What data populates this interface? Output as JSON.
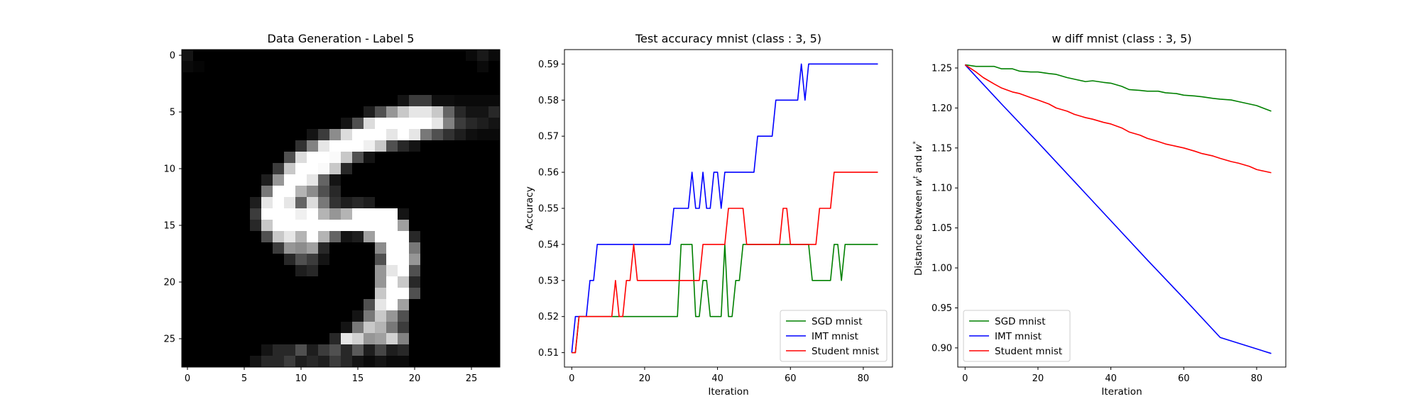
{
  "charts": [
    {
      "type": "heatmap",
      "title": "Data Generation - Label 5",
      "colormap": "gray",
      "xticks": [
        0,
        5,
        10,
        15,
        20,
        25
      ],
      "yticks": [
        0,
        5,
        10,
        15,
        20,
        25
      ],
      "image": [
        [
          20,
          0,
          0,
          0,
          0,
          0,
          0,
          0,
          0,
          0,
          0,
          0,
          0,
          0,
          0,
          0,
          0,
          0,
          0,
          0,
          0,
          0,
          0,
          0,
          0,
          10,
          25,
          10
        ],
        [
          10,
          5,
          0,
          0,
          0,
          0,
          0,
          0,
          0,
          0,
          0,
          0,
          0,
          0,
          0,
          0,
          0,
          0,
          0,
          0,
          0,
          0,
          0,
          0,
          0,
          0,
          10,
          0
        ],
        [
          0,
          0,
          0,
          0,
          0,
          0,
          0,
          0,
          0,
          0,
          0,
          0,
          0,
          0,
          0,
          0,
          0,
          0,
          0,
          0,
          0,
          0,
          0,
          0,
          0,
          0,
          0,
          0
        ],
        [
          0,
          0,
          0,
          0,
          0,
          0,
          0,
          0,
          0,
          0,
          0,
          0,
          0,
          0,
          0,
          0,
          0,
          0,
          0,
          0,
          0,
          0,
          0,
          0,
          0,
          0,
          0,
          0
        ],
        [
          0,
          0,
          0,
          0,
          0,
          0,
          0,
          0,
          0,
          0,
          0,
          0,
          0,
          0,
          0,
          0,
          0,
          0,
          0,
          20,
          60,
          60,
          15,
          15,
          10,
          10,
          10,
          10
        ],
        [
          0,
          0,
          0,
          0,
          0,
          0,
          0,
          0,
          0,
          0,
          0,
          0,
          0,
          0,
          0,
          0,
          30,
          80,
          150,
          200,
          230,
          230,
          200,
          100,
          40,
          20,
          20,
          40
        ],
        [
          0,
          0,
          0,
          0,
          0,
          0,
          0,
          0,
          0,
          0,
          0,
          0,
          0,
          0,
          20,
          80,
          220,
          255,
          255,
          255,
          255,
          255,
          230,
          130,
          60,
          40,
          30,
          20
        ],
        [
          0,
          0,
          0,
          0,
          0,
          0,
          0,
          0,
          0,
          0,
          0,
          20,
          60,
          140,
          220,
          255,
          255,
          255,
          230,
          255,
          230,
          120,
          80,
          50,
          30,
          15,
          10,
          10
        ],
        [
          0,
          0,
          0,
          0,
          0,
          0,
          0,
          0,
          0,
          0,
          50,
          130,
          230,
          255,
          255,
          255,
          240,
          200,
          80,
          40,
          20,
          0,
          0,
          0,
          0,
          0,
          0,
          0
        ],
        [
          0,
          0,
          0,
          0,
          0,
          0,
          0,
          0,
          0,
          80,
          220,
          255,
          255,
          250,
          200,
          80,
          20,
          0,
          0,
          0,
          0,
          0,
          0,
          0,
          0,
          0,
          0,
          0
        ],
        [
          0,
          0,
          0,
          0,
          0,
          0,
          0,
          0,
          60,
          200,
          255,
          255,
          250,
          200,
          40,
          0,
          0,
          0,
          0,
          0,
          0,
          0,
          0,
          0,
          0,
          0,
          0,
          0
        ],
        [
          0,
          0,
          0,
          0,
          0,
          0,
          0,
          30,
          150,
          255,
          255,
          230,
          100,
          20,
          0,
          0,
          0,
          0,
          0,
          0,
          0,
          0,
          0,
          0,
          0,
          0,
          0,
          0
        ],
        [
          0,
          0,
          0,
          0,
          0,
          0,
          0,
          120,
          255,
          255,
          180,
          140,
          80,
          40,
          0,
          0,
          0,
          0,
          0,
          0,
          0,
          0,
          0,
          0,
          0,
          0,
          0,
          0
        ],
        [
          0,
          0,
          0,
          0,
          0,
          0,
          30,
          230,
          255,
          230,
          100,
          220,
          120,
          50,
          30,
          40,
          30,
          0,
          0,
          0,
          0,
          0,
          0,
          0,
          0,
          0,
          0,
          0
        ],
        [
          0,
          0,
          0,
          0,
          0,
          0,
          60,
          255,
          255,
          255,
          240,
          255,
          180,
          150,
          180,
          255,
          255,
          255,
          255,
          20,
          0,
          0,
          0,
          0,
          0,
          0,
          0,
          0
        ],
        [
          0,
          0,
          0,
          0,
          0,
          0,
          40,
          200,
          255,
          255,
          255,
          255,
          255,
          255,
          255,
          255,
          255,
          255,
          255,
          160,
          0,
          0,
          0,
          0,
          0,
          0,
          0,
          0
        ],
        [
          0,
          0,
          0,
          0,
          0,
          0,
          0,
          80,
          200,
          230,
          180,
          255,
          180,
          100,
          20,
          30,
          160,
          255,
          255,
          255,
          40,
          0,
          0,
          0,
          0,
          0,
          0,
          0
        ],
        [
          0,
          0,
          0,
          0,
          0,
          0,
          0,
          0,
          60,
          150,
          140,
          160,
          40,
          0,
          0,
          0,
          0,
          140,
          255,
          255,
          120,
          0,
          0,
          0,
          0,
          0,
          0,
          0
        ],
        [
          0,
          0,
          0,
          0,
          0,
          0,
          0,
          0,
          0,
          40,
          80,
          60,
          20,
          0,
          0,
          0,
          0,
          80,
          255,
          255,
          150,
          0,
          0,
          0,
          0,
          0,
          0,
          0
        ],
        [
          0,
          0,
          0,
          0,
          0,
          0,
          0,
          0,
          0,
          0,
          30,
          40,
          0,
          0,
          0,
          0,
          0,
          150,
          230,
          255,
          80,
          0,
          0,
          0,
          0,
          0,
          0,
          0
        ],
        [
          0,
          0,
          0,
          0,
          0,
          0,
          0,
          0,
          0,
          0,
          0,
          0,
          0,
          0,
          0,
          0,
          0,
          150,
          255,
          200,
          40,
          0,
          0,
          0,
          0,
          0,
          0,
          0
        ],
        [
          0,
          0,
          0,
          0,
          0,
          0,
          0,
          0,
          0,
          0,
          0,
          0,
          0,
          0,
          0,
          0,
          0,
          200,
          255,
          255,
          80,
          0,
          0,
          0,
          0,
          0,
          0,
          0
        ],
        [
          0,
          0,
          0,
          0,
          0,
          0,
          0,
          0,
          0,
          0,
          0,
          0,
          0,
          0,
          0,
          0,
          80,
          230,
          255,
          160,
          0,
          0,
          0,
          0,
          0,
          0,
          0,
          0
        ],
        [
          0,
          0,
          0,
          0,
          0,
          0,
          0,
          0,
          0,
          0,
          0,
          0,
          0,
          0,
          0,
          20,
          120,
          200,
          150,
          80,
          0,
          0,
          0,
          0,
          0,
          0,
          0,
          0
        ],
        [
          0,
          0,
          0,
          0,
          0,
          0,
          0,
          0,
          0,
          0,
          0,
          0,
          0,
          0,
          20,
          120,
          200,
          180,
          120,
          60,
          0,
          0,
          0,
          0,
          0,
          0,
          0,
          0
        ],
        [
          0,
          0,
          0,
          0,
          0,
          0,
          0,
          0,
          0,
          0,
          0,
          0,
          0,
          40,
          230,
          210,
          150,
          160,
          210,
          130,
          0,
          0,
          0,
          0,
          0,
          0,
          0,
          0
        ],
        [
          0,
          0,
          0,
          0,
          0,
          0,
          0,
          20,
          40,
          40,
          80,
          30,
          60,
          80,
          40,
          90,
          30,
          70,
          30,
          40,
          0,
          0,
          0,
          0,
          0,
          0,
          0,
          0
        ],
        [
          0,
          0,
          0,
          0,
          0,
          0,
          20,
          40,
          40,
          60,
          30,
          40,
          30,
          60,
          40,
          20,
          10,
          20,
          10,
          10,
          0,
          0,
          0,
          0,
          0,
          0,
          0,
          0
        ]
      ]
    },
    {
      "type": "line",
      "title": "Test accuracy mnist (class : 3, 5)",
      "xlabel": "Iteration",
      "ylabel": "Accuracy",
      "xlim": [
        -2,
        88
      ],
      "ylim": [
        0.506,
        0.594
      ],
      "xticks": [
        0,
        20,
        40,
        60,
        80
      ],
      "yticks": [
        0.51,
        0.52,
        0.53,
        0.54,
        0.55,
        0.56,
        0.57,
        0.58,
        0.59
      ],
      "legend_position": "lower-right",
      "series": [
        {
          "name": "SGD mnist",
          "color": "#008000",
          "x": [
            0,
            1,
            2,
            3,
            29,
            30,
            31,
            33,
            34,
            35,
            36,
            37,
            38,
            39,
            41,
            42,
            43,
            44,
            45,
            46,
            47,
            51,
            52,
            53,
            63,
            64,
            65,
            66,
            67,
            71,
            72,
            73,
            74,
            75,
            76,
            84
          ],
          "y": [
            0.51,
            0.51,
            0.52,
            0.52,
            0.52,
            0.54,
            0.54,
            0.54,
            0.52,
            0.52,
            0.53,
            0.53,
            0.52,
            0.52,
            0.52,
            0.54,
            0.52,
            0.52,
            0.53,
            0.53,
            0.54,
            0.54,
            0.54,
            0.54,
            0.54,
            0.54,
            0.54,
            0.53,
            0.53,
            0.53,
            0.54,
            0.54,
            0.53,
            0.54,
            0.54,
            0.54
          ]
        },
        {
          "name": "IMT mnist",
          "color": "#0000ff",
          "x": [
            0,
            1,
            4,
            5,
            6,
            7,
            8,
            27,
            28,
            32,
            33,
            34,
            35,
            36,
            37,
            38,
            39,
            40,
            41,
            42,
            43,
            50,
            51,
            55,
            56,
            62,
            63,
            64,
            65,
            66,
            84
          ],
          "y": [
            0.51,
            0.52,
            0.52,
            0.53,
            0.53,
            0.54,
            0.54,
            0.54,
            0.55,
            0.55,
            0.56,
            0.55,
            0.55,
            0.56,
            0.55,
            0.55,
            0.56,
            0.56,
            0.55,
            0.56,
            0.56,
            0.56,
            0.57,
            0.57,
            0.58,
            0.58,
            0.59,
            0.58,
            0.59,
            0.59,
            0.59
          ]
        },
        {
          "name": "Student mnist",
          "color": "#ff0000",
          "x": [
            0,
            1,
            2,
            11,
            12,
            13,
            14,
            15,
            16,
            17,
            18,
            19,
            20,
            35,
            36,
            37,
            42,
            43,
            47,
            48,
            57,
            58,
            59,
            60,
            67,
            68,
            71,
            72,
            84
          ],
          "y": [
            0.51,
            0.51,
            0.52,
            0.52,
            0.53,
            0.52,
            0.52,
            0.53,
            0.53,
            0.54,
            0.53,
            0.53,
            0.53,
            0.53,
            0.54,
            0.54,
            0.54,
            0.55,
            0.55,
            0.54,
            0.54,
            0.55,
            0.55,
            0.54,
            0.54,
            0.55,
            0.55,
            0.56,
            0.56
          ]
        }
      ]
    },
    {
      "type": "line",
      "title": "w diff mnist (class : 3, 5)",
      "xlabel": "Iteration",
      "ylabel": "Distance between w^t and w^*",
      "ylabel_main": "Distance between ",
      "ylabel_w": "w",
      "ylabel_sup_t": "t",
      "ylabel_and": " and ",
      "ylabel_sup_star": "*",
      "xlim": [
        -2,
        88
      ],
      "ylim": [
        0.876,
        1.273
      ],
      "xticks": [
        0,
        20,
        40,
        60,
        80
      ],
      "yticks": [
        0.9,
        0.95,
        1.0,
        1.05,
        1.1,
        1.15,
        1.2,
        1.25
      ],
      "ytick_decimals": 2,
      "legend_position": "lower-left",
      "series": [
        {
          "name": "SGD mnist",
          "color": "#008000",
          "x": [
            0,
            3,
            5,
            8,
            10,
            13,
            15,
            18,
            20,
            23,
            25,
            28,
            30,
            33,
            35,
            38,
            40,
            43,
            45,
            48,
            50,
            53,
            55,
            58,
            60,
            63,
            65,
            68,
            70,
            73,
            75,
            78,
            80,
            84
          ],
          "y": [
            1.254,
            1.252,
            1.252,
            1.252,
            1.249,
            1.249,
            1.246,
            1.245,
            1.245,
            1.243,
            1.242,
            1.238,
            1.236,
            1.233,
            1.234,
            1.232,
            1.231,
            1.227,
            1.223,
            1.222,
            1.221,
            1.221,
            1.219,
            1.218,
            1.216,
            1.215,
            1.214,
            1.212,
            1.211,
            1.21,
            1.208,
            1.205,
            1.203,
            1.196
          ]
        },
        {
          "name": "IMT mnist",
          "color": "#0000ff",
          "x": [
            0,
            10,
            20,
            30,
            40,
            50,
            60,
            70,
            84
          ],
          "y": [
            1.254,
            1.205,
            1.157,
            1.108,
            1.059,
            1.01,
            0.962,
            0.913,
            0.893
          ]
        },
        {
          "name": "Student mnist",
          "color": "#ff0000",
          "x": [
            0,
            3,
            5,
            8,
            10,
            13,
            15,
            18,
            20,
            23,
            25,
            28,
            30,
            33,
            35,
            38,
            40,
            43,
            45,
            48,
            50,
            53,
            55,
            58,
            60,
            63,
            65,
            68,
            70,
            73,
            75,
            78,
            80,
            82,
            84
          ],
          "y": [
            1.254,
            1.245,
            1.238,
            1.23,
            1.225,
            1.22,
            1.218,
            1.213,
            1.21,
            1.205,
            1.2,
            1.196,
            1.192,
            1.188,
            1.186,
            1.182,
            1.18,
            1.175,
            1.17,
            1.166,
            1.162,
            1.158,
            1.155,
            1.152,
            1.15,
            1.146,
            1.143,
            1.14,
            1.137,
            1.133,
            1.131,
            1.127,
            1.123,
            1.121,
            1.119
          ]
        }
      ]
    }
  ]
}
